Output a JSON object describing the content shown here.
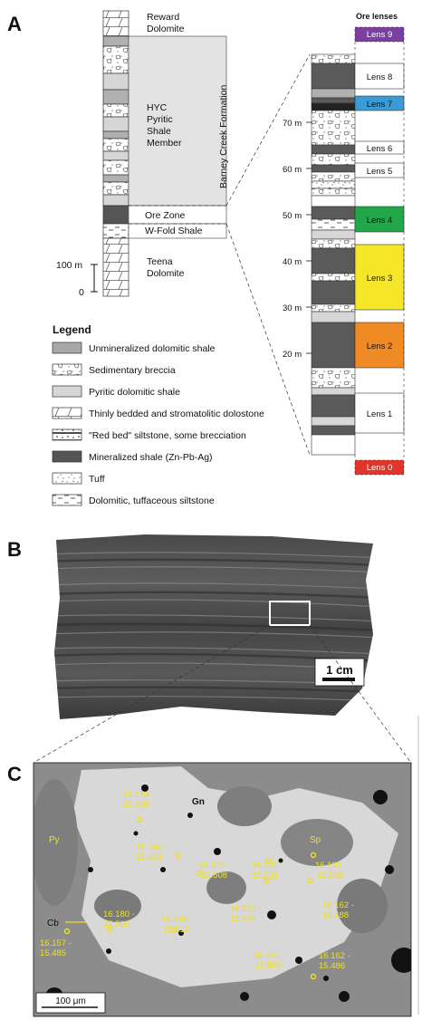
{
  "panels": {
    "a": "A",
    "b": "B",
    "c": "C"
  },
  "stratigraphy": {
    "units": [
      "Reward",
      "Dolomite",
      "HYC",
      "Pyritic",
      "Shale",
      "Member",
      "Ore Zone",
      "W-Fold Shale",
      "Teena",
      "Dolomite"
    ],
    "formation": "Barney Creek Formation",
    "scale": [
      "100 m",
      "0"
    ]
  },
  "ore_column": {
    "title": "Ore lenses",
    "depths": [
      "70 m",
      "60 m",
      "50 m",
      "40 m",
      "30 m",
      "20 m"
    ],
    "lenses": [
      "Lens 9",
      "Lens 8",
      "Lens 7",
      "Lens 6",
      "Lens 5",
      "Lens 4",
      "Lens 3",
      "Lens 2",
      "Lens 1",
      "Lens 0"
    ],
    "colors": {
      "lens9": "#7a3fa0",
      "lens7": "#3a9bd5",
      "lens4": "#22a64a",
      "lens3": "#f5e62a",
      "lens2": "#f08a24",
      "lens0": "#e1342b"
    }
  },
  "legend": {
    "title": "Legend",
    "items": [
      "Unmineralized dolomitic shale",
      "Sedimentary breccia",
      "Pyritic dolomitic shale",
      "Thinly bedded and stromatolitic dolostone",
      "\"Red bed\" siltstone, some brecciation",
      "Mineralized shale (Zn-Pb-Ag)",
      "Tuff",
      "Dolomitic, tuffaceous siltstone"
    ]
  },
  "sample_photo": {
    "scale": "1 cm"
  },
  "micrograph": {
    "minerals": [
      "Py",
      "Sp",
      "Gn",
      "Cb"
    ],
    "scale": "100 μm",
    "spots": [
      [
        "16.153 -",
        "15.480"
      ],
      [
        "16.140 -",
        "15.461"
      ],
      [
        "16.177 -",
        "15.508"
      ],
      [
        "16.192 -",
        "15.531"
      ],
      [
        "16.191 -",
        "15.529"
      ],
      [
        "16.180 -",
        "15.508"
      ],
      [
        "16.180 -",
        "15.518"
      ],
      [
        "16.132 -",
        "15.444"
      ],
      [
        "16.162 -",
        "16.488"
      ],
      [
        "16.157 -",
        "15.485"
      ],
      [
        "16.152 -",
        "15.475"
      ],
      [
        "16.162 -",
        "15.486"
      ]
    ]
  }
}
